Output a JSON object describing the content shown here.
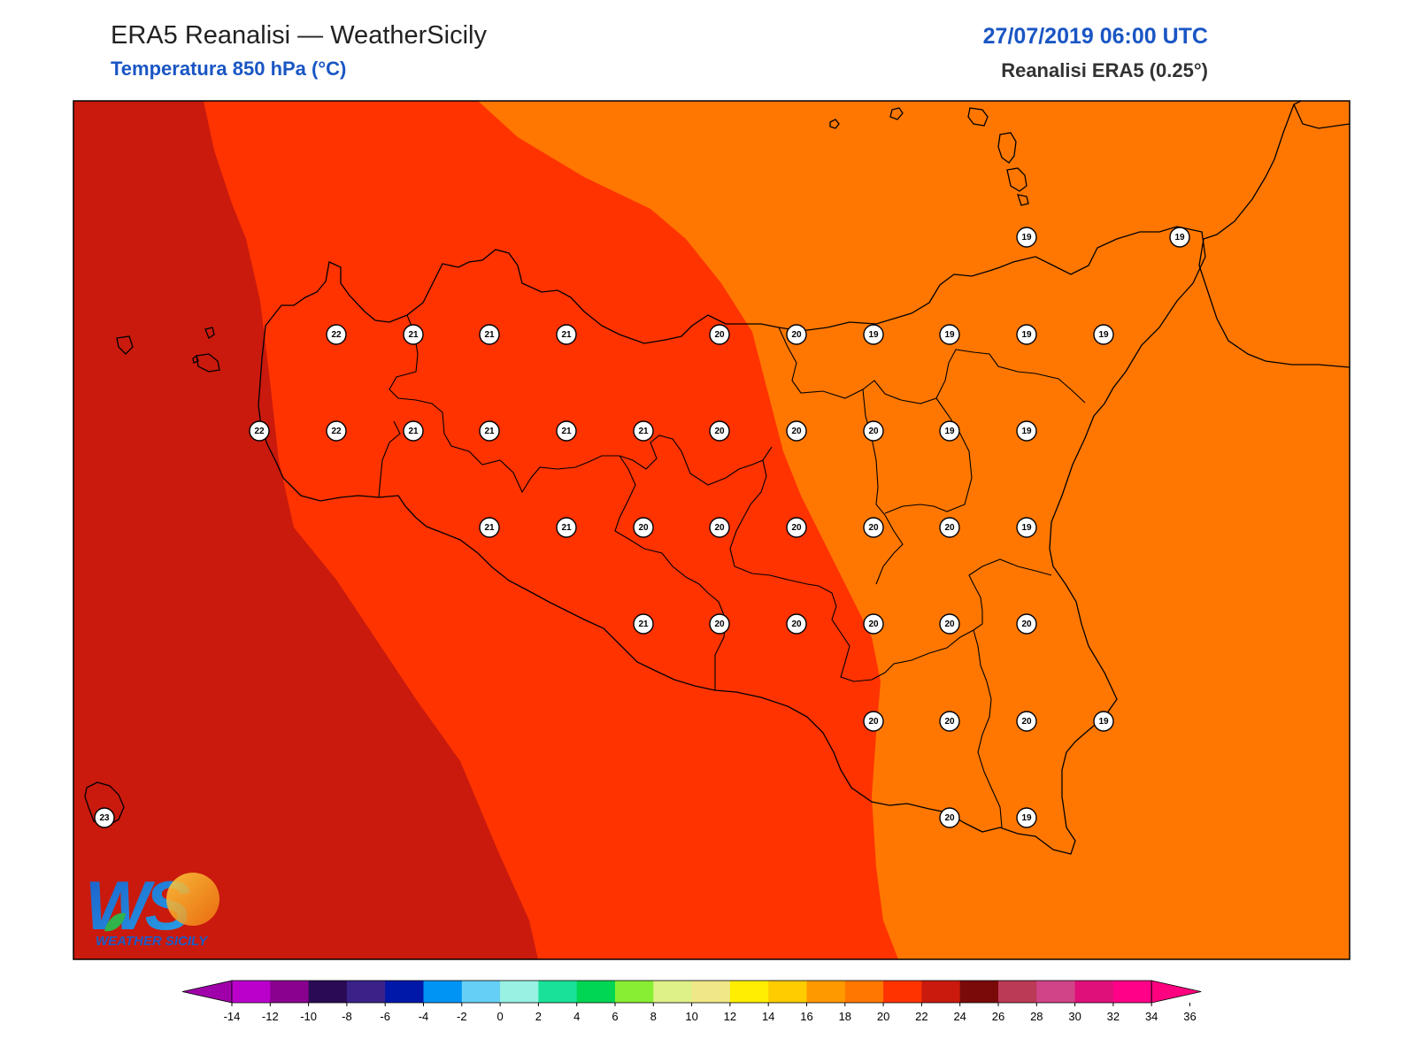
{
  "header": {
    "title": "ERA5 Reanalisi — WeatherSicily",
    "subtitle": "Temperatura 850 hPa (°C)",
    "datetime": "27/07/2019 06:00 UTC",
    "source": "Reanalisi ERA5 (0.25°)"
  },
  "logo": {
    "letters": "WS",
    "name": "WEATHER SICILY"
  },
  "colors": {
    "band_23_24": "#c91a0d",
    "band_21_22": "#ff3300",
    "band_19_20": "#ff7700",
    "frame": "#000000",
    "coastline": "#000000",
    "accent_blue": "#1a56c4"
  },
  "station_values": [
    {
      "row": 1,
      "values": [
        19,
        19
      ]
    },
    {
      "row": 2,
      "values": [
        22,
        21,
        21,
        21,
        20,
        20,
        19,
        19,
        19,
        19
      ]
    },
    {
      "row": 3,
      "values": [
        22,
        22,
        21,
        21,
        21,
        21,
        20,
        20,
        20,
        19,
        19
      ]
    },
    {
      "row": 4,
      "values": [
        21,
        21,
        20,
        20,
        20,
        20,
        20,
        19
      ]
    },
    {
      "row": 5,
      "values": [
        21,
        20,
        20,
        20,
        20,
        20
      ]
    },
    {
      "row": 6,
      "values": [
        20,
        20,
        20,
        19
      ]
    },
    {
      "row": 7,
      "values": [
        23,
        20,
        19
      ]
    }
  ],
  "colorbar": {
    "labels": [
      "-14",
      "-12",
      "-10",
      "-8",
      "-6",
      "-4",
      "-2",
      "0",
      "2",
      "4",
      "6",
      "8",
      "10",
      "12",
      "14",
      "16",
      "18",
      "20",
      "22",
      "24",
      "26",
      "28",
      "30",
      "32",
      "34",
      "36"
    ],
    "colors": [
      "#bb00cc",
      "#8a008f",
      "#2b0a55",
      "#3a2288",
      "#0018aa",
      "#0094f5",
      "#66cff5",
      "#98f1e3",
      "#1ae19a",
      "#00d653",
      "#88ee33",
      "#def088",
      "#f0e788",
      "#ffee00",
      "#ffcc00",
      "#ff9900",
      "#ff7700",
      "#ff3300",
      "#c91a0d",
      "#7a0a0a",
      "#bb3a55",
      "#d24488",
      "#e0107a",
      "#ff0088"
    ],
    "min_color": "#a000aa",
    "max_color": "#ff0080"
  }
}
